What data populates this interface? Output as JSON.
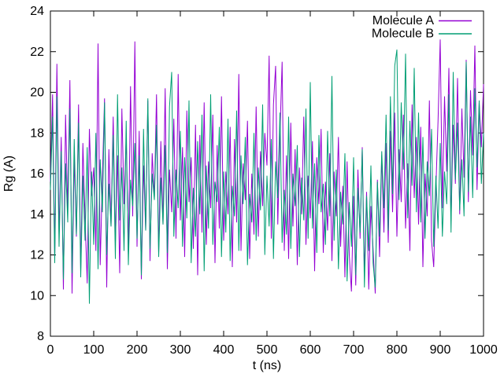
{
  "chart_data": {
    "type": "line",
    "title": "",
    "xlabel": "t (ns)",
    "ylabel": "Rg (A)",
    "xlim": [
      0,
      1000
    ],
    "ylim": [
      8,
      24
    ],
    "xticks": [
      0,
      100,
      200,
      300,
      400,
      500,
      600,
      700,
      800,
      900,
      1000
    ],
    "yticks": [
      8,
      10,
      12,
      14,
      16,
      18,
      20,
      22,
      24
    ],
    "grid": "off",
    "legend_position": "top-right-inside",
    "background_color": "#ffffff",
    "axis_color": "#000000",
    "x_start": 0,
    "x_step": 5,
    "series": [
      {
        "name": "Molecule A",
        "color": "#9400d3",
        "values": [
          15.6,
          19.9,
          11.8,
          21.4,
          13.0,
          17.8,
          10.3,
          18.9,
          14.2,
          20.6,
          10.1,
          16.8,
          12.9,
          19.4,
          11.2,
          17.5,
          13.8,
          10.6,
          18.2,
          14.9,
          16.3,
          12.2,
          22.4,
          11.5,
          15.8,
          19.7,
          10.4,
          17.2,
          13.4,
          18.8,
          12.6,
          16.9,
          11.1,
          19.2,
          14.5,
          17.8,
          12.0,
          20.3,
          13.9,
          22.5,
          12.4,
          18.1,
          10.8,
          16.4,
          13.2,
          19.6,
          11.7,
          17.0,
          14.8,
          19.9,
          12.1,
          17.6,
          13.5,
          20.2,
          11.3,
          16.2,
          14.1,
          18.7,
          12.8,
          20.9,
          13.7,
          17.3,
          11.9,
          19.1,
          14.6,
          16.8,
          12.3,
          18.4,
          11.0,
          17.9,
          13.1,
          19.5,
          12.5,
          16.6,
          14.3,
          18.9,
          11.6,
          17.4,
          13.3,
          19.8,
          12.7,
          16.1,
          14.0,
          18.3,
          11.4,
          17.7,
          13.6,
          20.9,
          12.2,
          16.5,
          14.7,
          18.6,
          11.8,
          16.0,
          13.0,
          19.3,
          12.9,
          17.1,
          14.4,
          18.0,
          16.4,
          21.8,
          12.8,
          19.4,
          21.3,
          13.5,
          17.9,
          21.5,
          12.2,
          16.9,
          11.8,
          18.5,
          13.4,
          17.2,
          11.5,
          16.3,
          14.0,
          18.8,
          12.5,
          15.9,
          13.8,
          17.6,
          11.2,
          16.8,
          14.5,
          18.2,
          12.1,
          15.6,
          13.2,
          17.0,
          11.7,
          16.1,
          13.9,
          17.8,
          12.4,
          15.4,
          10.9,
          16.6,
          12.0,
          10.2,
          14.9,
          10.5,
          16.2,
          12.8,
          17.3,
          11.1,
          15.1,
          10.3,
          14.4,
          12.3,
          10.1,
          15.7,
          11.9,
          16.9,
          13.1,
          17.5,
          12.6,
          18.1,
          14.1,
          19.0,
          12.9,
          17.2,
          14.6,
          18.9,
          13.3,
          16.5,
          12.2,
          19.4,
          14.8,
          17.8,
          13.5,
          18.3,
          11.4,
          16.0,
          13.9,
          19.6,
          12.7,
          11.4,
          15.3,
          18.6,
          22.6,
          14.3,
          19.8,
          16.1,
          21.2,
          13.7,
          18.4,
          15.5,
          20.7,
          14.0,
          19.2,
          15.8,
          21.6,
          14.6,
          20.1,
          16.9,
          22.3,
          15.2,
          19.5,
          17.3,
          20.4
        ]
      },
      {
        "name": "Molecule B",
        "color": "#009e73",
        "values": [
          15.2,
          18.8,
          11.6,
          19.8,
          12.4,
          17.1,
          10.8,
          16.5,
          13.6,
          19.2,
          11.1,
          17.7,
          13.0,
          18.5,
          10.9,
          15.9,
          12.7,
          17.3,
          9.6,
          16.1,
          12.5,
          18.0,
          11.3,
          16.7,
          14.1,
          19.5,
          12.0,
          15.5,
          13.4,
          17.9,
          11.8,
          19.9,
          13.7,
          16.3,
          12.2,
          18.6,
          11.5,
          15.7,
          14.4,
          17.5,
          12.8,
          16.9,
          11.0,
          18.2,
          13.2,
          19.7,
          12.3,
          16.0,
          14.7,
          18.4,
          11.9,
          15.8,
          13.5,
          17.4,
          12.1,
          19.3,
          21.0,
          12.9,
          16.2,
          14.3,
          18.1,
          12.4,
          16.8,
          13.8,
          19.6,
          11.6,
          15.3,
          12.9,
          17.6,
          14.0,
          18.9,
          11.2,
          16.4,
          13.3,
          19.9,
          12.5,
          15.6,
          14.6,
          18.3,
          11.9,
          16.1,
          13.1,
          18.7,
          11.7,
          15.4,
          13.9,
          19.1,
          12.2,
          16.9,
          14.5,
          17.8,
          11.5,
          15.0,
          13.6,
          18.0,
          12.7,
          16.3,
          14.2,
          19.4,
          12.0,
          15.9,
          13.4,
          17.7,
          11.8,
          16.6,
          14.8,
          19.0,
          12.6,
          15.2,
          13.0,
          18.8,
          12.3,
          16.0,
          14.4,
          17.4,
          11.9,
          15.8,
          13.7,
          19.2,
          12.8,
          20.5,
          13.3,
          16.5,
          12.1,
          17.9,
          14.1,
          15.5,
          12.5,
          18.1,
          13.9,
          20.8,
          12.7,
          16.2,
          11.3,
          15.1,
          13.5,
          17.0,
          10.7,
          14.6,
          12.4,
          16.8,
          11.0,
          15.3,
          13.1,
          17.2,
          10.4,
          14.9,
          12.2,
          16.4,
          11.6,
          10.4,
          15.6,
          12.9,
          17.1,
          14.3,
          18.9,
          13.2,
          19.8,
          15.0,
          21.3,
          22.1,
          14.7,
          19.5,
          16.2,
          21.9,
          13.8,
          18.6,
          15.4,
          21.2,
          14.1,
          19.0,
          13.6,
          17.8,
          12.8,
          16.6,
          14.9,
          18.2,
          12.4,
          15.9,
          13.3,
          17.5,
          12.9,
          16.1,
          14.5,
          19.9,
          13.1,
          21.0,
          15.7,
          18.5,
          14.2,
          16.7,
          13.9,
          21.5,
          15.1,
          18.8,
          14.8,
          20.2,
          16.3,
          19.6,
          15.5,
          18.0
        ]
      }
    ]
  }
}
